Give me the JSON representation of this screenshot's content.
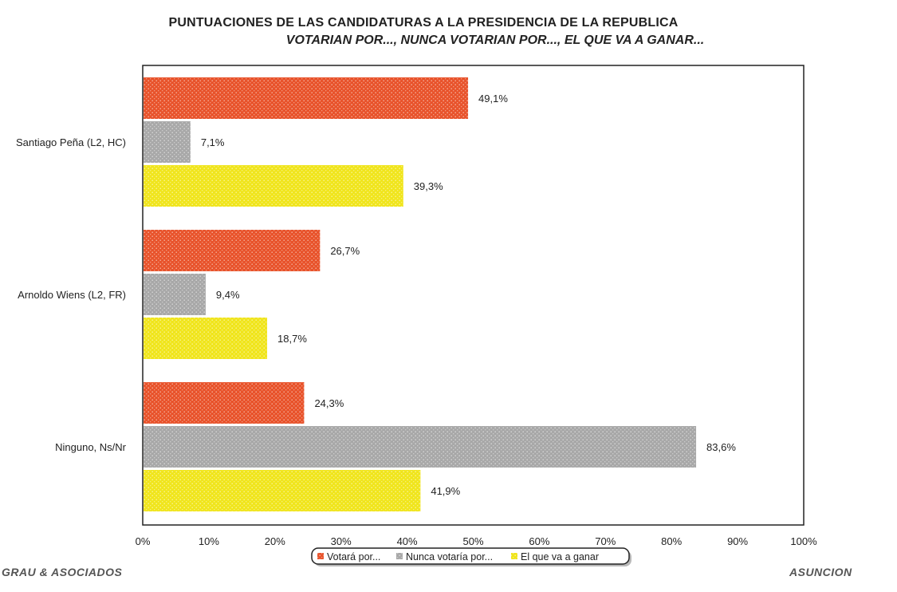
{
  "title": "PUNTUACIONES DE LAS CANDIDATURAS A LA PRESIDENCIA DE LA REPUBLICA",
  "subtitle": "VOTARIAN POR..., NUNCA VOTARIAN POR..., EL QUE VA A GANAR...",
  "footer": {
    "left": "GRAU & ASOCIADOS",
    "right": "ASUNCION"
  },
  "chart_data": {
    "type": "bar",
    "orientation": "horizontal",
    "categories": [
      "Santiago Peña (L2, HC)",
      "Arnoldo Wiens (L2, FR)",
      "Ninguno, Ns/Nr"
    ],
    "series": [
      {
        "name": "Votará por...",
        "color": "#e8532b",
        "values": [
          49.1,
          26.7,
          24.3
        ],
        "labels": [
          "49,1%",
          "26,7%",
          "24,3%"
        ]
      },
      {
        "name": "Nunca votaría por...",
        "color": "#a8a8a8",
        "values": [
          7.1,
          9.4,
          83.6
        ],
        "labels": [
          "7,1%",
          "9,4%",
          "83,6%"
        ]
      },
      {
        "name": "El que va a ganar",
        "color": "#f0e51c",
        "values": [
          39.3,
          18.7,
          41.9
        ],
        "labels": [
          "39,3%",
          "18,7%",
          "41,9%"
        ]
      }
    ],
    "xlim": [
      0,
      100
    ],
    "xticks": [
      "0%",
      "10%",
      "20%",
      "30%",
      "40%",
      "50%",
      "60%",
      "70%",
      "80%",
      "90%",
      "100%"
    ],
    "grid": false,
    "legend_position": "bottom"
  }
}
